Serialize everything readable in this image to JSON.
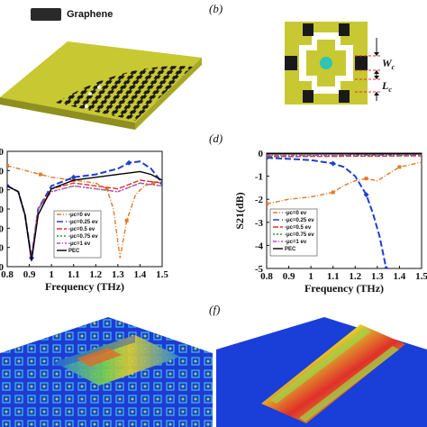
{
  "panels": {
    "b": "(b)",
    "d": "(d)",
    "f": "(f)"
  },
  "legend_top": {
    "label": "Graphene",
    "swatch_color": "#2a2a2a"
  },
  "unit_cell": {
    "wc_label": "W",
    "wc_sub": "c",
    "lc_label": "L",
    "lc_sub": "c"
  },
  "colors": {
    "yellow": "#c8c832",
    "dark": "#1a1a1a",
    "teal": "#2ec4b6",
    "orange": "#e07b2a",
    "blue": "#1f3fd1",
    "red": "#e0302a",
    "green": "#2a9a2a",
    "magenta": "#d23ad2",
    "black": "#000000"
  },
  "chart_data": [
    {
      "type": "line",
      "xlabel": "Frequency (THz)",
      "ylabel": "",
      "xlim": [
        0.8,
        1.5
      ],
      "ylim": [
        -40,
        0
      ],
      "x_ticks": [
        "0.8",
        "0.9",
        "1",
        "1.1",
        "1.2",
        "1.3",
        "1.4",
        "1.5"
      ],
      "y_ticks": [
        "0",
        "0",
        "0",
        "0",
        "0",
        "0",
        "0"
      ],
      "series": [
        {
          "name": "-μc=0 ev",
          "color": "orange",
          "x": [
            0.8,
            0.85,
            0.9,
            0.95,
            1.0,
            1.05,
            1.1,
            1.15,
            1.2,
            1.25,
            1.28,
            1.31,
            1.34,
            1.38,
            1.42,
            1.46,
            1.5
          ],
          "y": [
            -5,
            -6,
            -7,
            -8,
            -9,
            -9.5,
            -10,
            -10.5,
            -11,
            -13,
            -20,
            -37,
            -24,
            -15,
            -12,
            -11,
            -10
          ]
        },
        {
          "name": "-μc=0.25 ev",
          "color": "blue",
          "x": [
            0.8,
            0.85,
            0.88,
            0.91,
            0.94,
            1.0,
            1.1,
            1.2,
            1.3,
            1.35,
            1.4,
            1.45,
            1.5
          ],
          "y": [
            -12,
            -14,
            -22,
            -37,
            -20,
            -12,
            -9,
            -8,
            -6,
            -4,
            -3.5,
            -6,
            -11
          ]
        },
        {
          "name": "-μc=0.5 ev",
          "color": "red",
          "x": [
            0.8,
            0.85,
            0.88,
            0.91,
            0.94,
            1.0,
            1.1,
            1.2,
            1.3,
            1.4,
            1.5
          ],
          "y": [
            -12,
            -14,
            -22,
            -37,
            -20,
            -13,
            -11,
            -12,
            -13,
            -10,
            -11
          ]
        },
        {
          "name": "-μc=0.75 ev",
          "color": "green",
          "x": [
            0.8,
            0.85,
            0.88,
            0.91,
            0.94,
            1.0,
            1.1,
            1.2,
            1.3,
            1.4,
            1.5
          ],
          "y": [
            -12,
            -14,
            -22,
            -37,
            -20,
            -14,
            -12,
            -13,
            -14,
            -11,
            -12
          ]
        },
        {
          "name": "-μc=1 ev",
          "color": "magenta",
          "x": [
            0.8,
            0.85,
            0.88,
            0.91,
            0.94,
            1.0,
            1.1,
            1.2,
            1.3,
            1.4,
            1.5
          ],
          "y": [
            -12,
            -14,
            -22,
            -37,
            -20,
            -14,
            -12,
            -13,
            -14,
            -11,
            -12
          ]
        },
        {
          "name": "PEC",
          "color": "black",
          "x": [
            0.8,
            0.85,
            0.88,
            0.91,
            0.94,
            1.0,
            1.1,
            1.2,
            1.3,
            1.4,
            1.45,
            1.5
          ],
          "y": [
            -12,
            -14,
            -22,
            -38,
            -22,
            -13,
            -10,
            -9,
            -8,
            -7,
            -8,
            -10
          ]
        }
      ]
    },
    {
      "type": "line",
      "xlabel": "Frequency (THz)",
      "ylabel": "S21(dB)",
      "xlim": [
        0.8,
        1.5
      ],
      "ylim": [
        -5,
        0
      ],
      "x_ticks": [
        "0.8",
        "0.9",
        "1",
        "1.1",
        "1.2",
        "1.3",
        "1.4",
        "1.5"
      ],
      "y_ticks": [
        "0",
        "-1",
        "-2",
        "-3",
        "-4",
        "-5"
      ],
      "series": [
        {
          "name": "-μc=0 ev",
          "color": "orange",
          "x": [
            0.8,
            0.9,
            1.0,
            1.1,
            1.15,
            1.2,
            1.25,
            1.3,
            1.35,
            1.4,
            1.45,
            1.5
          ],
          "y": [
            -2.2,
            -2.0,
            -1.9,
            -1.7,
            -1.4,
            -1.2,
            -1.1,
            -1.2,
            -0.9,
            -0.6,
            -0.5,
            -0.4
          ]
        },
        {
          "name": "-μc=0.25 ev",
          "color": "blue",
          "x": [
            0.8,
            0.9,
            1.0,
            1.1,
            1.15,
            1.2,
            1.25,
            1.28,
            1.31,
            1.34
          ],
          "y": [
            -0.2,
            -0.25,
            -0.3,
            -0.45,
            -0.6,
            -1.0,
            -1.8,
            -2.6,
            -3.6,
            -5
          ]
        },
        {
          "name": "-μc=0.5 ev",
          "color": "red",
          "x": [
            0.8,
            0.9,
            1.0,
            1.1,
            1.2,
            1.3,
            1.4,
            1.5
          ],
          "y": [
            -0.15,
            -0.15,
            -0.14,
            -0.14,
            -0.13,
            -0.13,
            -0.12,
            -0.12
          ]
        },
        {
          "name": "-μc=0.75 ev",
          "color": "green",
          "x": [
            0.8,
            0.9,
            1.0,
            1.1,
            1.2,
            1.3,
            1.4,
            1.5
          ],
          "y": [
            -0.12,
            -0.12,
            -0.11,
            -0.11,
            -0.1,
            -0.1,
            -0.1,
            -0.1
          ]
        },
        {
          "name": "-μc=1 ev",
          "color": "magenta",
          "x": [
            0.8,
            0.9,
            1.0,
            1.1,
            1.2,
            1.3,
            1.4,
            1.5
          ],
          "y": [
            -0.1,
            -0.1,
            -0.1,
            -0.1,
            -0.09,
            -0.09,
            -0.09,
            -0.09
          ]
        },
        {
          "name": "PEC",
          "color": "black",
          "x": [
            0.8,
            0.9,
            1.0,
            1.1,
            1.2,
            1.3,
            1.4,
            1.5
          ],
          "y": [
            -0.03,
            -0.03,
            -0.03,
            -0.03,
            -0.03,
            -0.03,
            -0.03,
            -0.03
          ]
        }
      ]
    }
  ]
}
